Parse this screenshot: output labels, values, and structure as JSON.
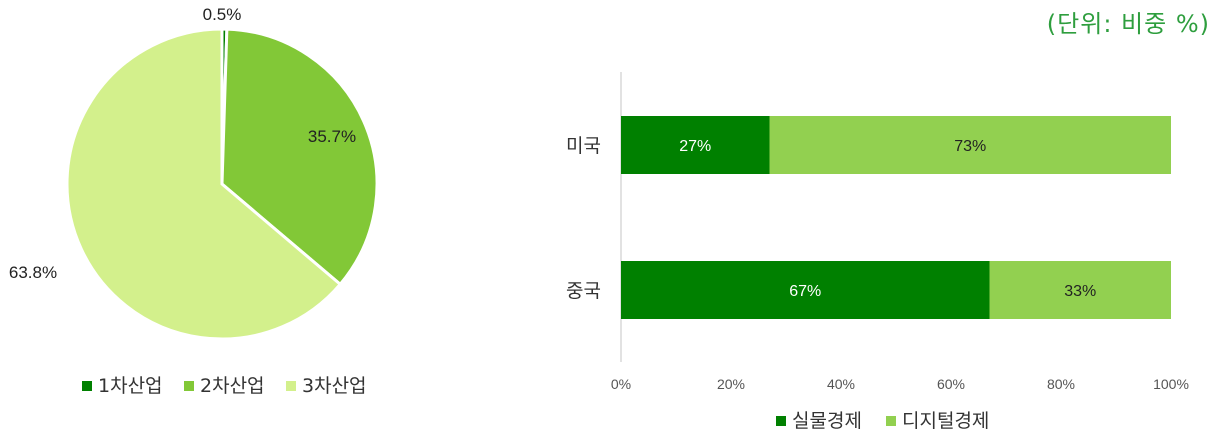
{
  "unit_label": "(단위:  비중  %)",
  "chart_data": [
    {
      "type": "pie",
      "slices": [
        {
          "label": "1차산업",
          "value": 0.5,
          "display": "0.5%",
          "color": "#008000"
        },
        {
          "label": "2차산업",
          "value": 35.7,
          "display": "35.7%",
          "color": "#82c837"
        },
        {
          "label": "3차산업",
          "value": 63.8,
          "display": "63.8%",
          "color": "#d3f08c"
        }
      ],
      "legend": [
        "1차산업",
        "2차산업",
        "3차산업"
      ],
      "legend_placement": "bottom"
    },
    {
      "type": "bar",
      "orientation": "horizontal",
      "stacked": true,
      "categories": [
        "미국",
        "중국"
      ],
      "series": [
        {
          "name": "실물경제",
          "values": [
            27,
            67
          ],
          "labels": [
            "27%",
            "67%"
          ],
          "color": "#008000"
        },
        {
          "name": "디지털경제",
          "values": [
            73,
            33
          ],
          "labels": [
            "73%",
            "33%"
          ],
          "color": "#92d050"
        }
      ],
      "xlim": [
        0,
        100
      ],
      "xticks": [
        "0%",
        "20%",
        "40%",
        "60%",
        "80%",
        "100%"
      ],
      "legend_placement": "bottom",
      "grid": false
    }
  ]
}
